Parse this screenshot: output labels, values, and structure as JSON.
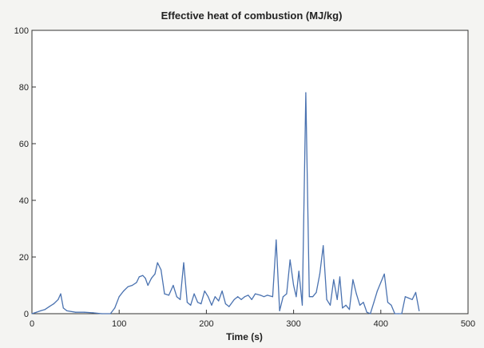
{
  "chart_data": {
    "type": "line",
    "title": "Effective heat of combustion (MJ/kg)",
    "xlabel": "Time (s)",
    "ylabel": "",
    "xlim": [
      0,
      500
    ],
    "ylim": [
      0,
      100
    ],
    "xticks": [
      0,
      100,
      200,
      300,
      400,
      500
    ],
    "yticks": [
      0,
      20,
      40,
      60,
      80,
      100
    ],
    "grid": false,
    "legend": "none",
    "series": [
      {
        "color": "#4a72b0",
        "points": [
          [
            0,
            0
          ],
          [
            5,
            0.5
          ],
          [
            10,
            1
          ],
          [
            15,
            1.5
          ],
          [
            20,
            2.5
          ],
          [
            25,
            3.5
          ],
          [
            30,
            5
          ],
          [
            33,
            7
          ],
          [
            36,
            2
          ],
          [
            40,
            1
          ],
          [
            50,
            0.5
          ],
          [
            60,
            0.5
          ],
          [
            70,
            0.3
          ],
          [
            80,
            0
          ],
          [
            90,
            0
          ],
          [
            95,
            2
          ],
          [
            100,
            6
          ],
          [
            105,
            8
          ],
          [
            110,
            9.5
          ],
          [
            115,
            10
          ],
          [
            120,
            11
          ],
          [
            123,
            13
          ],
          [
            127,
            13.5
          ],
          [
            130,
            12.5
          ],
          [
            133,
            10
          ],
          [
            137,
            12.5
          ],
          [
            141,
            14
          ],
          [
            144,
            18
          ],
          [
            148,
            15.5
          ],
          [
            152,
            7
          ],
          [
            157,
            6.5
          ],
          [
            162,
            10
          ],
          [
            166,
            6
          ],
          [
            170,
            5
          ],
          [
            174,
            18
          ],
          [
            178,
            4
          ],
          [
            182,
            3
          ],
          [
            186,
            7
          ],
          [
            190,
            4
          ],
          [
            194,
            3.5
          ],
          [
            198,
            8
          ],
          [
            202,
            6
          ],
          [
            206,
            3
          ],
          [
            210,
            6
          ],
          [
            214,
            4.5
          ],
          [
            218,
            8
          ],
          [
            222,
            3.5
          ],
          [
            226,
            2.5
          ],
          [
            232,
            5
          ],
          [
            236,
            6
          ],
          [
            240,
            5
          ],
          [
            244,
            6
          ],
          [
            248,
            6.5
          ],
          [
            252,
            5
          ],
          [
            256,
            7
          ],
          [
            262,
            6.5
          ],
          [
            266,
            6
          ],
          [
            270,
            6.5
          ],
          [
            276,
            6
          ],
          [
            280,
            26
          ],
          [
            284,
            1
          ],
          [
            288,
            6
          ],
          [
            292,
            7
          ],
          [
            296,
            19
          ],
          [
            300,
            10
          ],
          [
            303,
            6
          ],
          [
            306,
            15
          ],
          [
            310,
            3
          ],
          [
            314,
            78
          ],
          [
            318,
            6
          ],
          [
            322,
            6
          ],
          [
            326,
            7.5
          ],
          [
            330,
            14
          ],
          [
            334,
            24
          ],
          [
            338,
            5
          ],
          [
            342,
            3
          ],
          [
            346,
            12
          ],
          [
            350,
            5
          ],
          [
            353,
            13
          ],
          [
            356,
            2
          ],
          [
            360,
            3
          ],
          [
            364,
            1.5
          ],
          [
            368,
            12
          ],
          [
            372,
            7
          ],
          [
            376,
            3
          ],
          [
            380,
            4
          ],
          [
            384,
            0.5
          ],
          [
            388,
            0
          ],
          [
            392,
            4
          ],
          [
            396,
            8
          ],
          [
            400,
            11
          ],
          [
            404,
            14
          ],
          [
            408,
            4
          ],
          [
            412,
            3
          ],
          [
            416,
            0
          ],
          [
            420,
            0
          ],
          [
            424,
            0
          ],
          [
            428,
            6
          ],
          [
            432,
            5.5
          ],
          [
            436,
            5
          ],
          [
            440,
            7.5
          ],
          [
            444,
            1
          ]
        ]
      }
    ]
  }
}
